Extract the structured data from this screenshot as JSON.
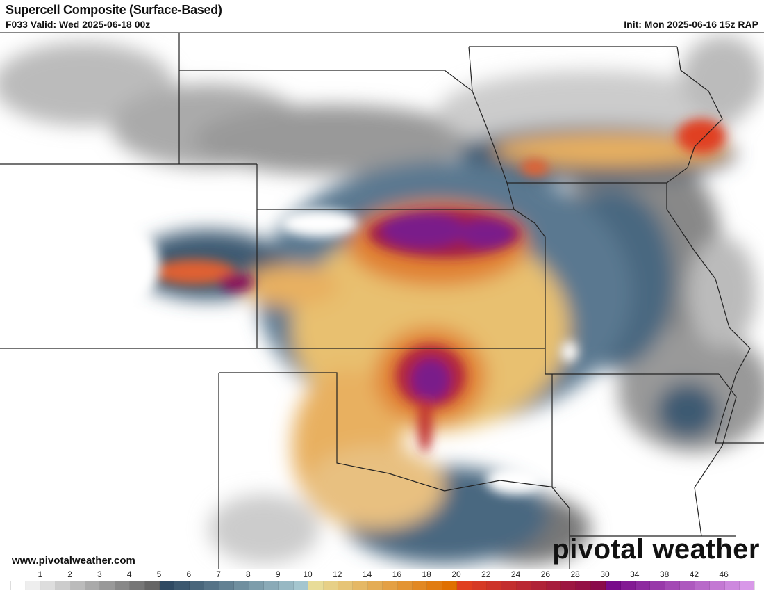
{
  "header": {
    "title": "Supercell Composite (Surface-Based)",
    "valid": "F033 Valid: Wed 2025-06-18 00z",
    "init": "Init: Mon 2025-06-16 15z RAP"
  },
  "footer": {
    "website": "www.pivotalweather.com",
    "logo_text": "pivotal weather"
  },
  "colorbar": {
    "tick_labels": [
      "1",
      "2",
      "3",
      "4",
      "5",
      "6",
      "7",
      "8",
      "9",
      "10",
      "12",
      "14",
      "16",
      "18",
      "20",
      "22",
      "24",
      "26",
      "28",
      "30",
      "34",
      "38",
      "42",
      "46"
    ],
    "tick_values": [
      1,
      2,
      3,
      4,
      5,
      6,
      7,
      8,
      9,
      10,
      12,
      14,
      16,
      18,
      20,
      22,
      24,
      26,
      28,
      30,
      34,
      38,
      42,
      46
    ],
    "bins": "0-10 step 0.5, 10-30 step 1, 30-50 step 2",
    "colors": {
      "white": "#ffffff",
      "gray_dark": "#666666",
      "blue_dark": "#2f4a63",
      "blue_light": "#a4c6cf",
      "yellow": "#e8dc98",
      "orange": "#e07000",
      "red": "#e04020",
      "maroon": "#8a0a4a",
      "purple": "#780a8a",
      "lilac": "#d898e8"
    }
  }
}
